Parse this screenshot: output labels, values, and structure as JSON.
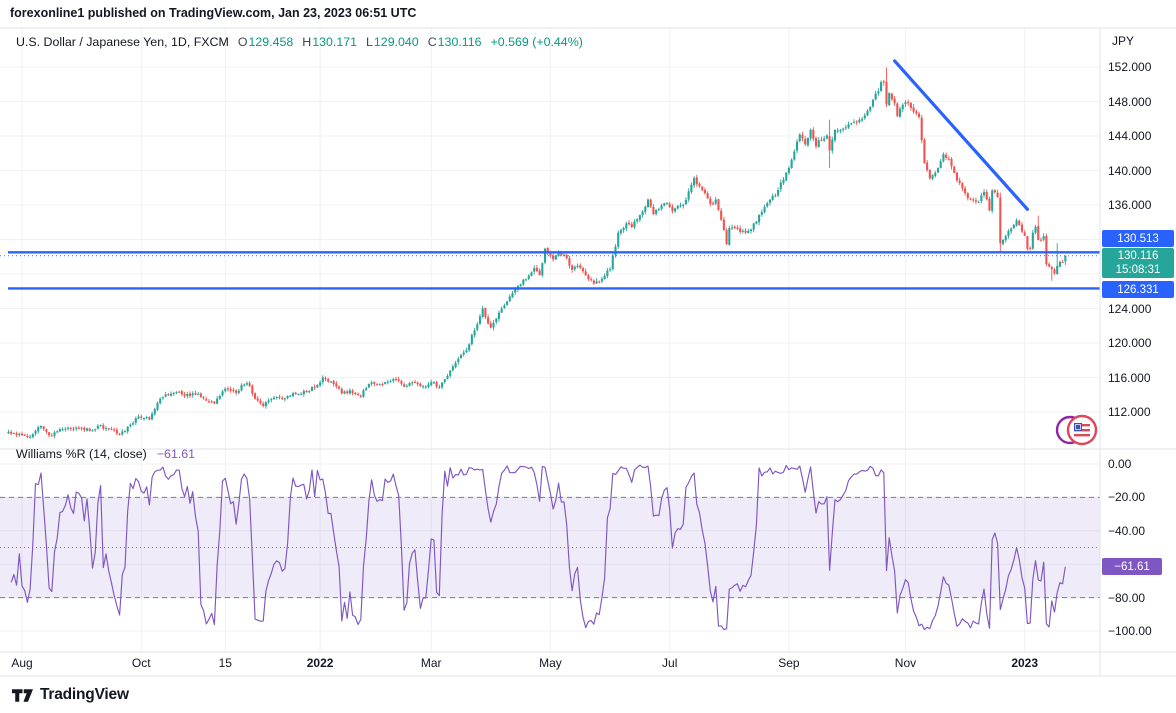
{
  "publisher_bar": {
    "text": "forexonline1 published on TradingView.com, Jan 23, 2023 06:51 UTC"
  },
  "main_chart": {
    "legend": {
      "symbol": "U.S. Dollar / Japanese Yen, 1D, FXCM",
      "open_label": "O",
      "open": "129.458",
      "high_label": "H",
      "high": "130.171",
      "low_label": "L",
      "low": "129.040",
      "close_label": "C",
      "close": "130.116",
      "change": "+0.569 (+0.44%)"
    },
    "price_axis": {
      "unit": "JPY",
      "ticks": [
        {
          "label": "152.000",
          "value": 152
        },
        {
          "label": "148.000",
          "value": 148
        },
        {
          "label": "144.000",
          "value": 144
        },
        {
          "label": "140.000",
          "value": 140
        },
        {
          "label": "136.000",
          "value": 136
        },
        {
          "label": "124.000",
          "value": 124
        },
        {
          "label": "120.000",
          "value": 120
        },
        {
          "label": "116.000",
          "value": 116
        },
        {
          "label": "112.000",
          "value": 112
        }
      ]
    },
    "badges": {
      "upper_level": "130.513",
      "last_price": "130.116",
      "countdown": "15:08:31",
      "lower_level": "126.331"
    },
    "levels": {
      "upper": 130.513,
      "lower": 126.331,
      "last": 130.116
    },
    "trendline": {
      "from_day": 322,
      "from_price": 152.7,
      "to_day": 371,
      "to_price": 135.5
    }
  },
  "indicator": {
    "title": "Williams %R (14, close)",
    "value_label": "−61.61",
    "value": -61.61,
    "period": 14,
    "upper_band": -20,
    "lower_band": -80,
    "mid_line": -50,
    "ticks": [
      {
        "label": "0.00",
        "value": 0
      },
      {
        "label": "−20.00",
        "value": -20
      },
      {
        "label": "−40.00",
        "value": -40
      },
      {
        "label": "−80.00",
        "value": -80
      },
      {
        "label": "−100.00",
        "value": -100
      }
    ]
  },
  "time_axis": {
    "ticks": [
      {
        "label": "Aug",
        "day": 0,
        "bold": false
      },
      {
        "label": "Oct",
        "day": 44,
        "bold": false
      },
      {
        "label": "15",
        "day": 75,
        "bold": false
      },
      {
        "label": "2022",
        "day": 110,
        "bold": true
      },
      {
        "label": "Mar",
        "day": 151,
        "bold": false
      },
      {
        "label": "May",
        "day": 195,
        "bold": false
      },
      {
        "label": "Jul",
        "day": 239,
        "bold": false
      },
      {
        "label": "Sep",
        "day": 283,
        "bold": false
      },
      {
        "label": "Nov",
        "day": 326,
        "bold": false
      },
      {
        "label": "2023",
        "day": 370,
        "bold": true
      }
    ]
  },
  "footer": {
    "brand": "TradingView"
  },
  "colors": {
    "up": "#26a69a",
    "down": "#ef5350",
    "level_blue": "#2962ff",
    "trend_blue": "#2962ff",
    "wpr_purple": "#7e57c2",
    "value_green": "#089981",
    "band_fill": "rgba(126,87,194,0.12)",
    "dashed_gray": "#787b86",
    "grid": "#f0f1f5",
    "border": "#e0e3eb"
  },
  "chart_data": {
    "type": "candlestick",
    "title": "U.S. Dollar / Japanese Yen, 1D, FXCM",
    "x_unit": "trading_day_index_from_2021-08-02",
    "y_unit": "JPY",
    "ylim": [
      107.9,
      156.5
    ],
    "visible_day_range": [
      -5,
      385
    ],
    "legend_position": "top-left",
    "grid": true,
    "close_anchors": [
      [
        -5,
        109.6
      ],
      [
        0,
        109.35
      ],
      [
        3,
        109.05
      ],
      [
        7,
        110.55
      ],
      [
        10,
        109.25
      ],
      [
        14,
        109.85
      ],
      [
        18,
        110.15
      ],
      [
        21,
        110.0
      ],
      [
        25,
        109.9
      ],
      [
        29,
        110.35
      ],
      [
        33,
        109.9
      ],
      [
        36,
        109.5
      ],
      [
        39,
        110.2
      ],
      [
        43,
        111.45
      ],
      [
        47,
        111.2
      ],
      [
        51,
        113.6
      ],
      [
        55,
        114.2
      ],
      [
        57,
        114.45
      ],
      [
        60,
        113.9
      ],
      [
        64,
        114.15
      ],
      [
        68,
        113.15
      ],
      [
        71,
        112.95
      ],
      [
        75,
        114.8
      ],
      [
        79,
        114.3
      ],
      [
        82,
        115.35
      ],
      [
        84,
        115.1
      ],
      [
        86,
        113.5
      ],
      [
        89,
        112.8
      ],
      [
        93,
        113.6
      ],
      [
        97,
        113.7
      ],
      [
        101,
        114.1
      ],
      [
        105,
        114.35
      ],
      [
        109,
        115.1
      ],
      [
        111,
        116.1
      ],
      [
        115,
        115.3
      ],
      [
        118,
        114.25
      ],
      [
        121,
        114.35
      ],
      [
        125,
        113.95
      ],
      [
        128,
        115.4
      ],
      [
        132,
        115.1
      ],
      [
        135,
        115.55
      ],
      [
        138,
        115.9
      ],
      [
        141,
        115.0
      ],
      [
        144,
        115.5
      ],
      [
        148,
        114.9
      ],
      [
        151,
        115.6
      ],
      [
        154,
        114.85
      ],
      [
        157,
        116.2
      ],
      [
        159,
        117.3
      ],
      [
        162,
        118.6
      ],
      [
        164,
        119.15
      ],
      [
        166,
        120.8
      ],
      [
        168,
        122.1
      ],
      [
        170,
        123.9
      ],
      [
        171,
        122.8
      ],
      [
        173,
        121.7
      ],
      [
        176,
        123.6
      ],
      [
        180,
        125.4
      ],
      [
        183,
        126.45
      ],
      [
        187,
        127.9
      ],
      [
        189,
        128.5
      ],
      [
        191,
        128.05
      ],
      [
        193,
        130.85
      ],
      [
        196,
        129.8
      ],
      [
        198,
        130.45
      ],
      [
        200,
        130.3
      ],
      [
        203,
        128.4
      ],
      [
        205,
        129.0
      ],
      [
        208,
        127.9
      ],
      [
        211,
        126.8
      ],
      [
        214,
        127.3
      ],
      [
        217,
        128.7
      ],
      [
        220,
        132.6
      ],
      [
        223,
        133.9
      ],
      [
        225,
        133.4
      ],
      [
        227,
        134.5
      ],
      [
        229,
        135.4
      ],
      [
        231,
        136.6
      ],
      [
        233,
        134.9
      ],
      [
        235,
        135.7
      ],
      [
        238,
        136.1
      ],
      [
        240,
        135.2
      ],
      [
        242,
        136.0
      ],
      [
        244,
        135.9
      ],
      [
        246,
        137.4
      ],
      [
        248,
        138.9
      ],
      [
        250,
        138.2
      ],
      [
        252,
        137.4
      ],
      [
        254,
        136.1
      ],
      [
        256,
        136.5
      ],
      [
        258,
        134.3
      ],
      [
        260,
        131.6
      ],
      [
        261,
        133.2
      ],
      [
        263,
        133.5
      ],
      [
        265,
        132.9
      ],
      [
        267,
        133.0
      ],
      [
        269,
        133.3
      ],
      [
        271,
        134.1
      ],
      [
        273,
        135.2
      ],
      [
        276,
        136.8
      ],
      [
        278,
        137.0
      ],
      [
        280,
        138.5
      ],
      [
        283,
        140.2
      ],
      [
        285,
        142.2
      ],
      [
        287,
        144.1
      ],
      [
        289,
        143.2
      ],
      [
        291,
        144.6
      ],
      [
        293,
        143.0
      ],
      [
        295,
        143.7
      ],
      [
        297,
        144.1
      ],
      [
        298,
        142.4
      ],
      [
        300,
        144.7
      ],
      [
        303,
        144.75
      ],
      [
        306,
        145.3
      ],
      [
        309,
        145.7
      ],
      [
        312,
        146.9
      ],
      [
        315,
        148.7
      ],
      [
        317,
        150.1
      ],
      [
        318,
        150.25
      ],
      [
        319,
        147.6
      ],
      [
        320,
        148.8
      ],
      [
        322,
        147.9
      ],
      [
        323,
        146.4
      ],
      [
        325,
        147.5
      ],
      [
        327,
        148.0
      ],
      [
        329,
        146.6
      ],
      [
        331,
        146.2
      ],
      [
        333,
        140.9
      ],
      [
        335,
        139.0
      ],
      [
        336,
        139.35
      ],
      [
        338,
        140.4
      ],
      [
        340,
        142.1
      ],
      [
        342,
        141.2
      ],
      [
        344,
        139.6
      ],
      [
        346,
        138.5
      ],
      [
        347,
        138.05
      ],
      [
        349,
        136.6
      ],
      [
        351,
        136.7
      ],
      [
        353,
        136.5
      ],
      [
        355,
        137.7
      ],
      [
        357,
        135.5
      ],
      [
        358,
        137.8
      ],
      [
        360,
        136.9
      ],
      [
        361,
        131.75
      ],
      [
        363,
        132.4
      ],
      [
        365,
        133.3
      ],
      [
        367,
        134.4
      ],
      [
        369,
        133.0
      ],
      [
        370,
        132.65
      ],
      [
        371,
        130.9
      ],
      [
        372,
        131.05
      ],
      [
        373,
        132.6
      ],
      [
        374,
        133.45
      ],
      [
        375,
        132.1
      ],
      [
        376,
        131.9
      ],
      [
        377,
        132.4
      ],
      [
        378,
        129.3
      ],
      [
        379,
        128.9
      ],
      [
        380,
        128.5
      ],
      [
        381,
        128.15
      ],
      [
        382,
        128.9
      ],
      [
        383,
        129.2
      ],
      [
        384,
        129.55
      ],
      [
        385,
        130.116
      ]
    ],
    "ohlc_overrides": {
      "298": {
        "h": 145.9,
        "l": 140.31
      },
      "319": {
        "h": 151.94
      },
      "361": {
        "h": 137.45,
        "l": 130.58
      },
      "375": {
        "h": 134.77
      },
      "380": {
        "l": 127.21
      },
      "382": {
        "h": 131.58
      },
      "385": {
        "o": 129.458,
        "h": 130.171,
        "l": 129.04,
        "c": 130.116
      }
    },
    "horizontal_levels": [
      130.513,
      126.331
    ],
    "last_price_line": 130.116,
    "indicator_series": "williams_percent_r_period_14_computed_from_ohlc",
    "indicator_last_value": -61.61
  }
}
